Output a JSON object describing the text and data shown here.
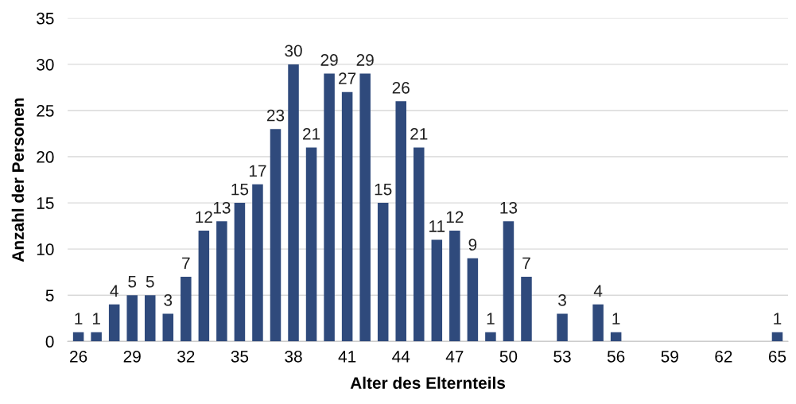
{
  "chart_data": {
    "type": "bar",
    "xlabel": "Alter des Elternteils",
    "ylabel": "Anzahl der Personen",
    "categories": [
      "26",
      null,
      null,
      "29",
      null,
      null,
      "32",
      null,
      null,
      "35",
      null,
      null,
      "38",
      null,
      null,
      "41",
      null,
      null,
      "44",
      null,
      null,
      "47",
      null,
      null,
      "50",
      null,
      null,
      "53",
      null,
      null,
      "56",
      null,
      null,
      "59",
      null,
      null,
      "62",
      null,
      null,
      "65"
    ],
    "values": [
      1,
      1,
      4,
      5,
      5,
      3,
      7,
      12,
      13,
      15,
      17,
      23,
      30,
      21,
      29,
      27,
      29,
      15,
      26,
      21,
      11,
      12,
      9,
      1,
      13,
      7,
      0,
      3,
      0,
      4,
      1,
      0,
      0,
      0,
      0,
      0,
      0,
      0,
      0,
      1
    ],
    "value_labels": [
      "1",
      "1",
      "4",
      "5",
      "5",
      "3",
      "7",
      "12",
      "13",
      "15",
      "17",
      "23",
      "30",
      "21",
      "29",
      "27",
      "29",
      "15",
      "26",
      "21",
      "11",
      "12",
      "9",
      "1",
      "13",
      "7",
      null,
      "3",
      null,
      "4",
      "1",
      null,
      null,
      null,
      null,
      null,
      null,
      null,
      null,
      "1"
    ],
    "color": "#2f4a7c",
    "ylim": [
      0,
      35
    ],
    "yticks": [
      0,
      5,
      10,
      15,
      20,
      25,
      30,
      35
    ],
    "grid": "y",
    "legend": false
  }
}
